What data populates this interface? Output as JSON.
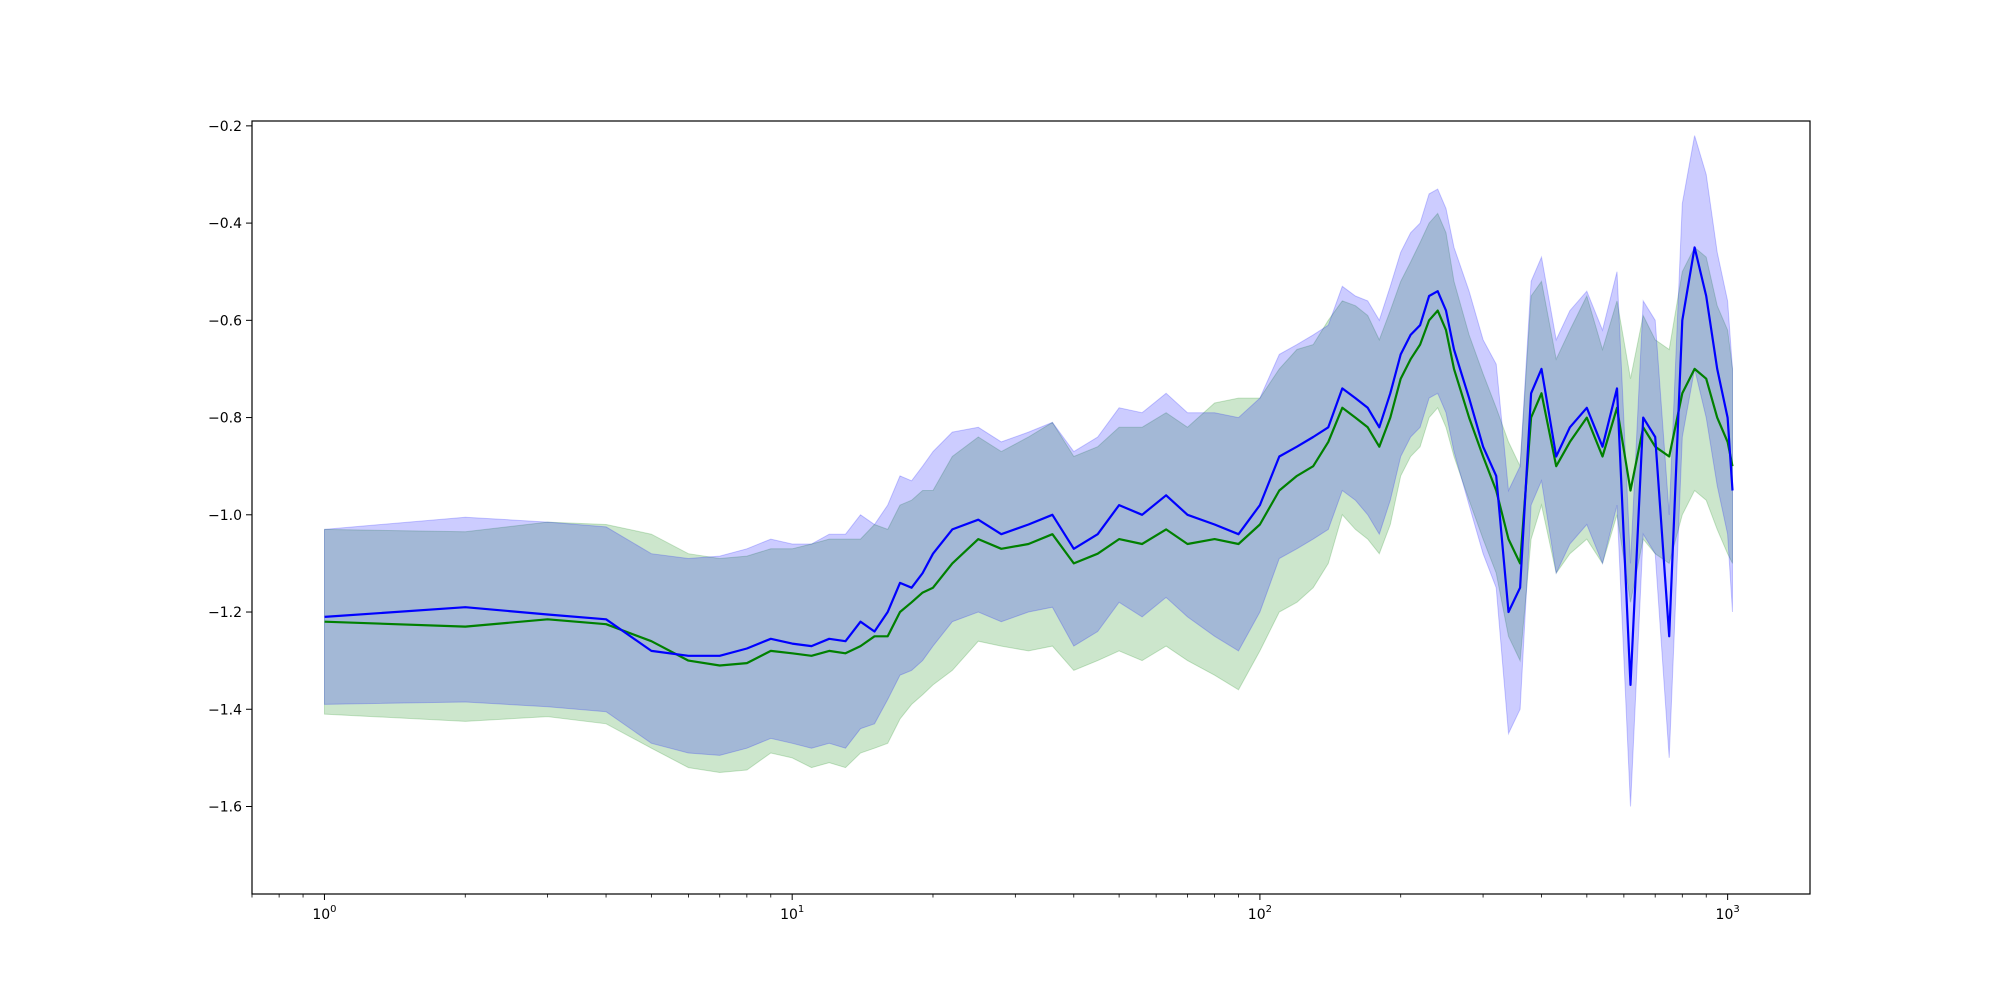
{
  "chart_data": {
    "type": "line",
    "title": "",
    "xlabel": "",
    "ylabel": "",
    "xscale": "log",
    "xlim": [
      0.7,
      1500
    ],
    "ylim": [
      -1.78,
      -0.19
    ],
    "grid": false,
    "legend": "none",
    "x_ticks": [
      {
        "value": 1,
        "base": "10",
        "exp": "0"
      },
      {
        "value": 10,
        "base": "10",
        "exp": "1"
      },
      {
        "value": 100,
        "base": "10",
        "exp": "2"
      },
      {
        "value": 1000,
        "base": "10",
        "exp": "3"
      }
    ],
    "y_ticks": [
      {
        "value": -0.2,
        "label": "−0.2"
      },
      {
        "value": -0.4,
        "label": "−0.4"
      },
      {
        "value": -0.6,
        "label": "−0.6"
      },
      {
        "value": -0.8,
        "label": "−0.8"
      },
      {
        "value": -1.0,
        "label": "−1.0"
      },
      {
        "value": -1.2,
        "label": "−1.2"
      },
      {
        "value": -1.4,
        "label": "−1.4"
      },
      {
        "value": -1.6,
        "label": "−1.6"
      }
    ],
    "series": [
      {
        "color": "#008000",
        "band_color": "#008000",
        "band_opacity": 0.2,
        "x": [
          1,
          2,
          3,
          4,
          5,
          6,
          7,
          8,
          9,
          10,
          11,
          12,
          13,
          14,
          15,
          16,
          17,
          18,
          19,
          20,
          22,
          25,
          28,
          32,
          36,
          40,
          45,
          50,
          56,
          63,
          70,
          80,
          90,
          100,
          110,
          120,
          130,
          140,
          150,
          160,
          170,
          180,
          190,
          200,
          210,
          220,
          230,
          240,
          250,
          260,
          280,
          300,
          320,
          340,
          360,
          380,
          400,
          430,
          460,
          500,
          540,
          580,
          620,
          660,
          700,
          750,
          800,
          850,
          900,
          950,
          1000,
          1024
        ],
        "y": [
          -1.22,
          -1.23,
          -1.215,
          -1.225,
          -1.26,
          -1.3,
          -1.31,
          -1.305,
          -1.28,
          -1.285,
          -1.29,
          -1.28,
          -1.285,
          -1.27,
          -1.25,
          -1.25,
          -1.2,
          -1.18,
          -1.16,
          -1.15,
          -1.1,
          -1.05,
          -1.07,
          -1.06,
          -1.04,
          -1.1,
          -1.08,
          -1.05,
          -1.06,
          -1.03,
          -1.06,
          -1.05,
          -1.06,
          -1.02,
          -0.95,
          -0.92,
          -0.9,
          -0.85,
          -0.78,
          -0.8,
          -0.82,
          -0.86,
          -0.8,
          -0.72,
          -0.68,
          -0.65,
          -0.6,
          -0.58,
          -0.62,
          -0.7,
          -0.8,
          -0.88,
          -0.95,
          -1.05,
          -1.1,
          -0.8,
          -0.75,
          -0.9,
          -0.85,
          -0.8,
          -0.88,
          -0.78,
          -0.95,
          -0.82,
          -0.86,
          -0.88,
          -0.75,
          -0.7,
          -0.72,
          -0.8,
          -0.85,
          -0.9
        ],
        "lower": [
          -1.41,
          -1.425,
          -1.415,
          -1.43,
          -1.48,
          -1.52,
          -1.53,
          -1.525,
          -1.49,
          -1.5,
          -1.52,
          -1.51,
          -1.52,
          -1.49,
          -1.48,
          -1.47,
          -1.42,
          -1.39,
          -1.37,
          -1.35,
          -1.32,
          -1.26,
          -1.27,
          -1.28,
          -1.27,
          -1.32,
          -1.3,
          -1.28,
          -1.3,
          -1.27,
          -1.3,
          -1.33,
          -1.36,
          -1.28,
          -1.2,
          -1.18,
          -1.15,
          -1.1,
          -1.0,
          -1.03,
          -1.05,
          -1.08,
          -1.02,
          -0.92,
          -0.88,
          -0.86,
          -0.8,
          -0.78,
          -0.82,
          -0.88,
          -0.97,
          -1.05,
          -1.12,
          -1.25,
          -1.3,
          -1.05,
          -0.98,
          -1.12,
          -1.08,
          -1.05,
          -1.1,
          -1.0,
          -1.18,
          -1.05,
          -1.08,
          -1.1,
          -1.0,
          -0.95,
          -0.97,
          -1.03,
          -1.08,
          -1.1
        ],
        "upper": [
          -1.03,
          -1.035,
          -1.015,
          -1.02,
          -1.04,
          -1.08,
          -1.09,
          -1.085,
          -1.07,
          -1.07,
          -1.06,
          -1.05,
          -1.05,
          -1.05,
          -1.02,
          -1.03,
          -0.98,
          -0.97,
          -0.95,
          -0.95,
          -0.88,
          -0.84,
          -0.87,
          -0.84,
          -0.81,
          -0.88,
          -0.86,
          -0.82,
          -0.82,
          -0.79,
          -0.82,
          -0.77,
          -0.76,
          -0.76,
          -0.7,
          -0.66,
          -0.65,
          -0.6,
          -0.56,
          -0.57,
          -0.59,
          -0.64,
          -0.58,
          -0.52,
          -0.48,
          -0.44,
          -0.4,
          -0.38,
          -0.42,
          -0.52,
          -0.63,
          -0.71,
          -0.78,
          -0.85,
          -0.9,
          -0.55,
          -0.52,
          -0.68,
          -0.62,
          -0.55,
          -0.66,
          -0.56,
          -0.72,
          -0.59,
          -0.64,
          -0.66,
          -0.5,
          -0.45,
          -0.47,
          -0.57,
          -0.62,
          -0.7
        ]
      },
      {
        "color": "#0000ff",
        "band_color": "#0000ff",
        "band_opacity": 0.2,
        "x": [
          1,
          2,
          3,
          4,
          5,
          6,
          7,
          8,
          9,
          10,
          11,
          12,
          13,
          14,
          15,
          16,
          17,
          18,
          19,
          20,
          22,
          25,
          28,
          32,
          36,
          40,
          45,
          50,
          56,
          63,
          70,
          80,
          90,
          100,
          110,
          120,
          130,
          140,
          150,
          160,
          170,
          180,
          190,
          200,
          210,
          220,
          230,
          240,
          250,
          260,
          280,
          300,
          320,
          340,
          360,
          380,
          400,
          430,
          460,
          500,
          540,
          580,
          620,
          660,
          700,
          750,
          800,
          850,
          900,
          950,
          1000,
          1024
        ],
        "y": [
          -1.21,
          -1.19,
          -1.205,
          -1.215,
          -1.28,
          -1.29,
          -1.29,
          -1.275,
          -1.255,
          -1.265,
          -1.27,
          -1.255,
          -1.26,
          -1.22,
          -1.24,
          -1.2,
          -1.14,
          -1.15,
          -1.12,
          -1.08,
          -1.03,
          -1.01,
          -1.04,
          -1.02,
          -1.0,
          -1.07,
          -1.04,
          -0.98,
          -1.0,
          -0.96,
          -1.0,
          -1.02,
          -1.04,
          -0.98,
          -0.88,
          -0.86,
          -0.84,
          -0.82,
          -0.74,
          -0.76,
          -0.78,
          -0.82,
          -0.75,
          -0.67,
          -0.63,
          -0.61,
          -0.55,
          -0.54,
          -0.58,
          -0.66,
          -0.76,
          -0.86,
          -0.92,
          -1.2,
          -1.15,
          -0.75,
          -0.7,
          -0.88,
          -0.82,
          -0.78,
          -0.86,
          -0.74,
          -1.35,
          -0.8,
          -0.84,
          -1.25,
          -0.6,
          -0.45,
          -0.55,
          -0.7,
          -0.8,
          -0.95
        ],
        "lower": [
          -1.39,
          -1.385,
          -1.395,
          -1.405,
          -1.47,
          -1.49,
          -1.495,
          -1.48,
          -1.46,
          -1.47,
          -1.48,
          -1.47,
          -1.48,
          -1.44,
          -1.43,
          -1.38,
          -1.33,
          -1.32,
          -1.3,
          -1.27,
          -1.22,
          -1.2,
          -1.22,
          -1.2,
          -1.19,
          -1.27,
          -1.24,
          -1.18,
          -1.21,
          -1.17,
          -1.21,
          -1.25,
          -1.28,
          -1.2,
          -1.09,
          -1.07,
          -1.05,
          -1.03,
          -0.95,
          -0.97,
          -1.0,
          -1.04,
          -0.97,
          -0.88,
          -0.84,
          -0.82,
          -0.76,
          -0.75,
          -0.79,
          -0.87,
          -0.98,
          -1.08,
          -1.15,
          -1.45,
          -1.4,
          -0.98,
          -0.93,
          -1.12,
          -1.06,
          -1.02,
          -1.1,
          -0.98,
          -1.6,
          -1.04,
          -1.08,
          -1.5,
          -0.84,
          -0.7,
          -0.8,
          -0.94,
          -1.04,
          -1.2
        ],
        "upper": [
          -1.03,
          -1.005,
          -1.015,
          -1.025,
          -1.08,
          -1.09,
          -1.085,
          -1.07,
          -1.05,
          -1.06,
          -1.06,
          -1.04,
          -1.04,
          -1.0,
          -1.02,
          -0.98,
          -0.92,
          -0.93,
          -0.9,
          -0.87,
          -0.83,
          -0.82,
          -0.85,
          -0.83,
          -0.81,
          -0.87,
          -0.84,
          -0.78,
          -0.79,
          -0.75,
          -0.79,
          -0.79,
          -0.8,
          -0.76,
          -0.67,
          -0.65,
          -0.63,
          -0.61,
          -0.53,
          -0.55,
          -0.56,
          -0.6,
          -0.53,
          -0.46,
          -0.42,
          -0.4,
          -0.34,
          -0.33,
          -0.37,
          -0.45,
          -0.54,
          -0.64,
          -0.69,
          -0.95,
          -0.9,
          -0.52,
          -0.47,
          -0.64,
          -0.58,
          -0.54,
          -0.62,
          -0.5,
          -1.1,
          -0.56,
          -0.6,
          -1.0,
          -0.36,
          -0.22,
          -0.3,
          -0.46,
          -0.56,
          -0.7
        ]
      }
    ]
  }
}
